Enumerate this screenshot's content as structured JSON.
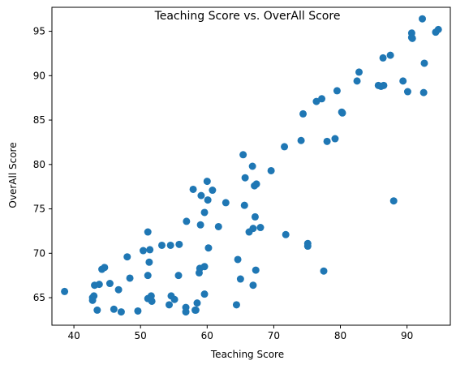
{
  "chart_data": {
    "type": "scatter",
    "title": "Teaching Score vs. OverAll Score",
    "xlabel": "Teaching Score",
    "ylabel": "OverAll Score",
    "xlim": [
      36.7,
      96.5
    ],
    "ylim": [
      61.9,
      97.7
    ],
    "xticks": [
      40,
      50,
      60,
      70,
      80,
      90
    ],
    "yticks": [
      65,
      70,
      75,
      80,
      85,
      90,
      95
    ],
    "grid": false,
    "legend": "none",
    "marker_color": "#1f77b4",
    "series": [
      {
        "points": [
          [
            38.6,
            65.7
          ],
          [
            42.8,
            65.0
          ],
          [
            42.8,
            64.7
          ],
          [
            43.0,
            65.2
          ],
          [
            43.1,
            66.4
          ],
          [
            43.5,
            63.6
          ],
          [
            43.8,
            66.5
          ],
          [
            44.2,
            68.2
          ],
          [
            44.6,
            68.4
          ],
          [
            45.4,
            66.6
          ],
          [
            46.0,
            63.7
          ],
          [
            46.7,
            65.9
          ],
          [
            47.1,
            63.4
          ],
          [
            48.0,
            69.6
          ],
          [
            48.4,
            67.2
          ],
          [
            49.6,
            63.5
          ],
          [
            50.4,
            70.3
          ],
          [
            51.1,
            72.4
          ],
          [
            51.1,
            67.5
          ],
          [
            51.1,
            64.9
          ],
          [
            51.3,
            69.0
          ],
          [
            51.4,
            70.4
          ],
          [
            51.6,
            65.2
          ],
          [
            51.7,
            64.6
          ],
          [
            53.2,
            70.9
          ],
          [
            54.3,
            64.2
          ],
          [
            54.5,
            70.9
          ],
          [
            54.6,
            65.2
          ],
          [
            55.1,
            64.8
          ],
          [
            55.7,
            67.5
          ],
          [
            55.8,
            71.0
          ],
          [
            56.8,
            63.4
          ],
          [
            56.8,
            63.9
          ],
          [
            56.9,
            73.6
          ],
          [
            57.9,
            77.2
          ],
          [
            58.2,
            63.6
          ],
          [
            58.3,
            63.6
          ],
          [
            58.5,
            64.4
          ],
          [
            58.8,
            67.8
          ],
          [
            58.9,
            68.3
          ],
          [
            59.0,
            73.2
          ],
          [
            59.1,
            76.5
          ],
          [
            59.6,
            65.4
          ],
          [
            59.6,
            68.5
          ],
          [
            59.6,
            74.6
          ],
          [
            60.0,
            78.1
          ],
          [
            60.1,
            76.0
          ],
          [
            60.2,
            70.6
          ],
          [
            60.8,
            77.1
          ],
          [
            61.7,
            73.0
          ],
          [
            62.8,
            75.7
          ],
          [
            64.4,
            64.2
          ],
          [
            64.6,
            69.3
          ],
          [
            65.0,
            67.1
          ],
          [
            65.4,
            81.1
          ],
          [
            65.6,
            75.4
          ],
          [
            65.7,
            78.5
          ],
          [
            66.3,
            72.4
          ],
          [
            66.8,
            79.8
          ],
          [
            66.9,
            66.4
          ],
          [
            66.9,
            72.8
          ],
          [
            67.1,
            77.6
          ],
          [
            67.2,
            74.1
          ],
          [
            67.3,
            68.1
          ],
          [
            67.4,
            77.8
          ],
          [
            68.0,
            72.9
          ],
          [
            69.6,
            79.3
          ],
          [
            71.6,
            82.0
          ],
          [
            71.8,
            72.1
          ],
          [
            74.1,
            82.7
          ],
          [
            74.4,
            85.7
          ],
          [
            75.1,
            71.1
          ],
          [
            75.1,
            70.8
          ],
          [
            76.4,
            87.1
          ],
          [
            77.2,
            87.4
          ],
          [
            77.5,
            68.0
          ],
          [
            78.0,
            82.6
          ],
          [
            79.2,
            82.9
          ],
          [
            79.5,
            88.3
          ],
          [
            80.2,
            85.9
          ],
          [
            80.3,
            85.8
          ],
          [
            82.5,
            89.4
          ],
          [
            82.8,
            90.4
          ],
          [
            85.7,
            88.9
          ],
          [
            86.1,
            88.8
          ],
          [
            86.4,
            92.0
          ],
          [
            86.5,
            88.9
          ],
          [
            87.5,
            92.3
          ],
          [
            88.0,
            75.9
          ],
          [
            89.4,
            89.4
          ],
          [
            90.1,
            88.2
          ],
          [
            90.7,
            94.8
          ],
          [
            90.7,
            94.3
          ],
          [
            90.8,
            94.2
          ],
          [
            92.3,
            96.4
          ],
          [
            92.5,
            88.1
          ],
          [
            92.6,
            91.4
          ],
          [
            94.3,
            94.9
          ],
          [
            94.7,
            95.2
          ]
        ]
      }
    ]
  }
}
